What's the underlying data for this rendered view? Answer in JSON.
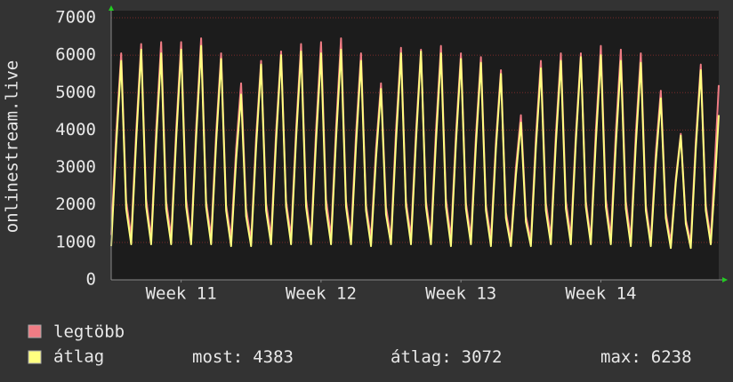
{
  "chart_data": {
    "type": "line",
    "ylabel": "onlinestream.live",
    "x": [
      0,
      0.25,
      0.5,
      0.75,
      1,
      1.25,
      1.5,
      1.75,
      2,
      2.25,
      2.5,
      2.75,
      3,
      3.25,
      3.5,
      3.75,
      4,
      4.25,
      4.5,
      4.75,
      5,
      5.25,
      5.5,
      5.75,
      6,
      6.25,
      6.5,
      6.75,
      7,
      7.25,
      7.5,
      7.75,
      8,
      8.25,
      8.5,
      8.75,
      9,
      9.25,
      9.5,
      9.75,
      10,
      10.25,
      10.5,
      10.75,
      11,
      11.25,
      11.5,
      11.75,
      12,
      12.25,
      12.5,
      12.75,
      13,
      13.25,
      13.5,
      13.75,
      14,
      14.25,
      14.5,
      14.75,
      15,
      15.25,
      15.5,
      15.75,
      16,
      16.25,
      16.5,
      16.75,
      17,
      17.25,
      17.5,
      17.75,
      18,
      18.25,
      18.5,
      18.75,
      19,
      19.25,
      19.5,
      19.75,
      20,
      20.25,
      20.5,
      20.75,
      21,
      21.25,
      21.5,
      21.75,
      22,
      22.25,
      22.5,
      22.75,
      23,
      23.25,
      23.5,
      23.75,
      24,
      24.25,
      24.5,
      24.75,
      25,
      25.25,
      25.5,
      25.75,
      26,
      26.25,
      26.5,
      26.75,
      27,
      27.25,
      27.5,
      27.75,
      28,
      28.25,
      28.5,
      28.75,
      29,
      29.25,
      29.5,
      29.75,
      30,
      30.25,
      30.4
    ],
    "xlim": [
      0,
      30.4
    ],
    "xticks": [
      {
        "value": 3.5,
        "label": "Week 11"
      },
      {
        "value": 10.5,
        "label": "Week 12"
      },
      {
        "value": 17.5,
        "label": "Week 13"
      },
      {
        "value": 24.5,
        "label": "Week 14"
      }
    ],
    "ylim": [
      0,
      7000
    ],
    "yticks": [
      0,
      1000,
      2000,
      3000,
      4000,
      5000,
      6000,
      7000
    ],
    "grid": true,
    "series": [
      {
        "name": "legtöbb",
        "color": "#f07c84",
        "values": [
          1200,
          3900,
          6050,
          2100,
          1150,
          3950,
          6300,
          2150,
          1100,
          4000,
          6350,
          2100,
          1150,
          4000,
          6350,
          2150,
          1100,
          4050,
          6450,
          2100,
          1150,
          3900,
          6050,
          2000,
          1100,
          3500,
          5250,
          1900,
          1050,
          3800,
          5850,
          2050,
          1150,
          3950,
          6100,
          2100,
          1150,
          4000,
          6300,
          2150,
          1100,
          4000,
          6350,
          2150,
          1150,
          4050,
          6450,
          2100,
          1150,
          3900,
          6050,
          2000,
          1100,
          3500,
          5250,
          1950,
          1100,
          4000,
          6200,
          2100,
          1150,
          3950,
          6150,
          2100,
          1150,
          4000,
          6250,
          2150,
          1100,
          3900,
          6050,
          2050,
          1150,
          3850,
          5950,
          2000,
          1100,
          3700,
          5600,
          1800,
          1050,
          3000,
          4400,
          1700,
          1050,
          3800,
          5850,
          2050,
          1150,
          3900,
          6050,
          2100,
          1150,
          3900,
          6050,
          2100,
          1100,
          4000,
          6250,
          2150,
          1150,
          3950,
          6150,
          2100,
          1100,
          3900,
          6050,
          2000,
          1050,
          3400,
          5050,
          1800,
          1000,
          2700,
          3900,
          1600,
          1000,
          3700,
          5750,
          2000,
          1100,
          3600,
          5200
        ]
      },
      {
        "name": "átlag",
        "color": "#ffff80",
        "values": [
          900,
          3600,
          5850,
          1900,
          950,
          3700,
          6150,
          1950,
          950,
          3700,
          6050,
          1900,
          950,
          3750,
          6150,
          1950,
          950,
          3800,
          6250,
          1950,
          950,
          3650,
          5900,
          1850,
          900,
          3200,
          4950,
          1700,
          900,
          3550,
          5750,
          1850,
          950,
          3700,
          6000,
          1950,
          950,
          3750,
          6100,
          1950,
          950,
          3700,
          6050,
          1900,
          950,
          3750,
          6150,
          1950,
          950,
          3600,
          5850,
          1850,
          900,
          3250,
          5100,
          1750,
          950,
          3700,
          6050,
          1950,
          950,
          3700,
          6100,
          1950,
          950,
          3700,
          6050,
          1950,
          900,
          3650,
          5900,
          1900,
          950,
          3600,
          5800,
          1850,
          900,
          3500,
          5500,
          1650,
          900,
          2800,
          4200,
          1550,
          900,
          3550,
          5650,
          1850,
          950,
          3650,
          5850,
          1900,
          950,
          3700,
          5950,
          1950,
          950,
          3700,
          6000,
          1950,
          950,
          3600,
          5850,
          1900,
          900,
          3600,
          5800,
          1850,
          900,
          3150,
          4850,
          1650,
          850,
          2600,
          3850,
          1500,
          850,
          3500,
          5600,
          1850,
          950,
          3000,
          4400
        ]
      }
    ],
    "stats": [
      {
        "label": "most:",
        "value": 4383
      },
      {
        "label": "átlag:",
        "value": 3072
      },
      {
        "label": "max:",
        "value": 6238
      }
    ]
  }
}
